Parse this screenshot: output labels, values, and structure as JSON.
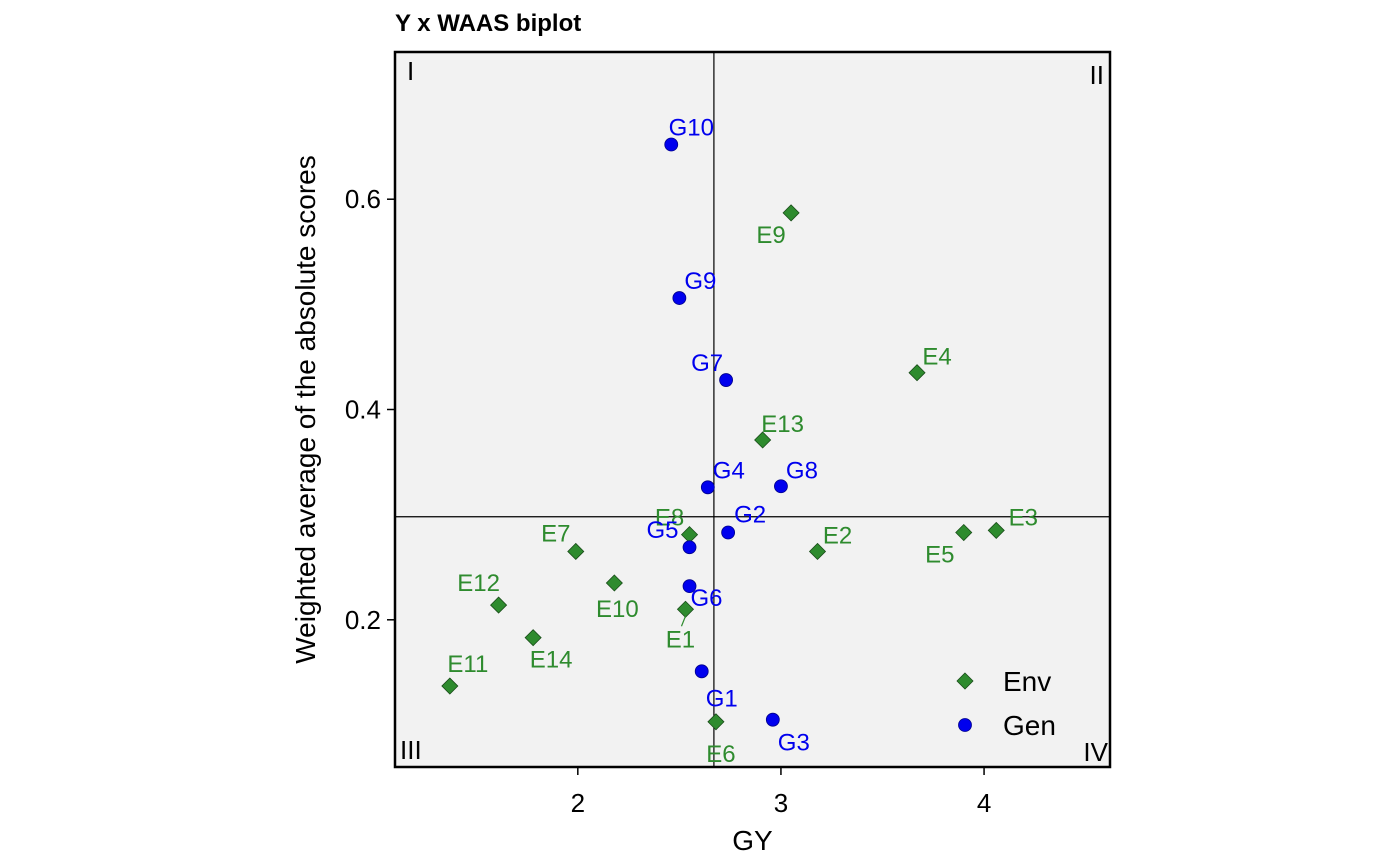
{
  "chart_data": {
    "type": "scatter",
    "title": "Y x WAAS biplot",
    "xlabel": "GY",
    "ylabel": "Weighted average of the absolute scores",
    "xlim": [
      1.1,
      4.62
    ],
    "ylim": [
      0.06,
      0.74
    ],
    "xticks": [
      2,
      3,
      4
    ],
    "yticks": [
      0.2,
      0.4,
      0.6
    ],
    "ref_lines": {
      "x": 2.67,
      "y": 0.298
    },
    "quadrants": [
      "I",
      "II",
      "III",
      "IV"
    ],
    "grid": false,
    "legend_position": "bottom-right",
    "colors": {
      "Env": "#2e8b2e",
      "Gen": "#0000ee",
      "panel": "#f2f2f2"
    },
    "series": [
      {
        "name": "Env",
        "marker": "diamond",
        "points": [
          {
            "label": "E1",
            "x": 2.53,
            "y": 0.21
          },
          {
            "label": "E2",
            "x": 3.18,
            "y": 0.265
          },
          {
            "label": "E3",
            "x": 4.06,
            "y": 0.285
          },
          {
            "label": "E4",
            "x": 3.67,
            "y": 0.435
          },
          {
            "label": "E5",
            "x": 3.9,
            "y": 0.283
          },
          {
            "label": "E6",
            "x": 2.68,
            "y": 0.103
          },
          {
            "label": "E7",
            "x": 1.99,
            "y": 0.265
          },
          {
            "label": "E8",
            "x": 2.55,
            "y": 0.281
          },
          {
            "label": "E9",
            "x": 3.05,
            "y": 0.587
          },
          {
            "label": "E10",
            "x": 2.18,
            "y": 0.235
          },
          {
            "label": "E11",
            "x": 1.37,
            "y": 0.137
          },
          {
            "label": "E12",
            "x": 1.61,
            "y": 0.214
          },
          {
            "label": "E13",
            "x": 2.91,
            "y": 0.371
          },
          {
            "label": "E14",
            "x": 1.78,
            "y": 0.183
          }
        ]
      },
      {
        "name": "Gen",
        "marker": "circle",
        "points": [
          {
            "label": "G1",
            "x": 2.61,
            "y": 0.151
          },
          {
            "label": "G2",
            "x": 2.74,
            "y": 0.283
          },
          {
            "label": "G3",
            "x": 2.96,
            "y": 0.105
          },
          {
            "label": "G4",
            "x": 2.64,
            "y": 0.326
          },
          {
            "label": "G5",
            "x": 2.55,
            "y": 0.269
          },
          {
            "label": "G6",
            "x": 2.55,
            "y": 0.232
          },
          {
            "label": "G7",
            "x": 2.73,
            "y": 0.428
          },
          {
            "label": "G8",
            "x": 3.0,
            "y": 0.327
          },
          {
            "label": "G9",
            "x": 2.5,
            "y": 0.506
          },
          {
            "label": "G10",
            "x": 2.46,
            "y": 0.652
          }
        ]
      }
    ]
  }
}
